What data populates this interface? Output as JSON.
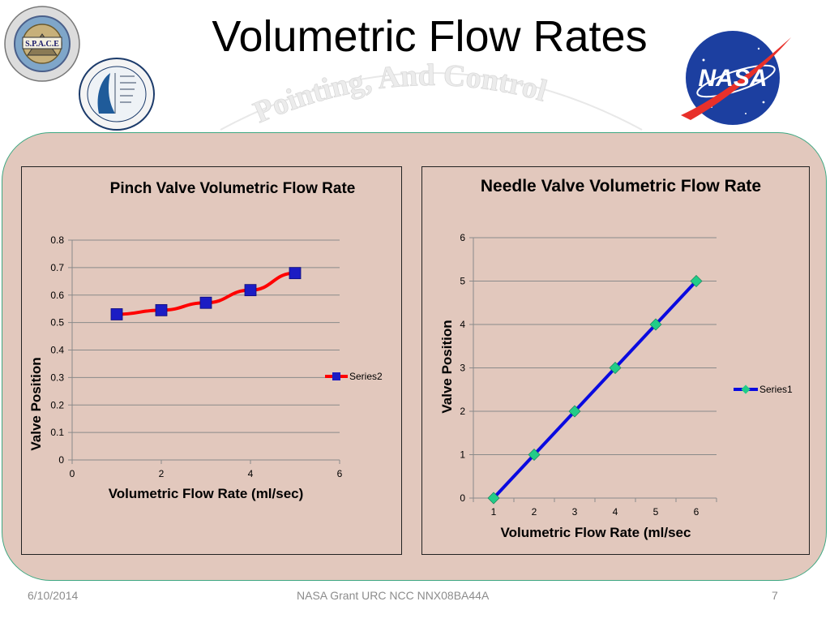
{
  "slide": {
    "title": "Volumetric Flow Rates",
    "footer": {
      "date": "6/10/2014",
      "grant": "NASA Grant URC NCC NNX08BA44A",
      "page": "7"
    },
    "logos": {
      "space_logo_text": "S.P.A.C.E",
      "nasa_logo_text": "NASA",
      "watermark_text": "Pointing, And Control"
    }
  },
  "colors": {
    "panel_bg": "#e2c8bd",
    "panel_border": "#3ea882",
    "pinch_line": "#ff0000",
    "pinch_marker": "#1c1cc4",
    "needle_line": "#0a0ae0",
    "needle_marker": "#22cc88",
    "grid": "#8a8a8a"
  },
  "chart_data": [
    {
      "type": "line",
      "title": "Pinch Valve Volumetric Flow Rate",
      "xlabel": "Volumetric Flow Rate (ml/sec)",
      "ylabel": "Valve Position",
      "xlim": [
        0,
        6
      ],
      "ylim": [
        0,
        0.8
      ],
      "x_ticks": [
        "0",
        "2",
        "4",
        "6"
      ],
      "y_ticks": [
        "0",
        "0.1",
        "0.2",
        "0.3",
        "0.4",
        "0.5",
        "0.6",
        "0.7",
        "0.8"
      ],
      "grid": true,
      "legend": "right",
      "series": [
        {
          "name": "Series2",
          "marker": "square",
          "x": [
            1,
            2,
            3,
            4,
            5
          ],
          "values": [
            0.53,
            0.545,
            0.572,
            0.618,
            0.68
          ]
        }
      ]
    },
    {
      "type": "line",
      "title": "Needle Valve Volumetric Flow Rate",
      "xlabel": "Volumetric Flow Rate (ml/sec",
      "ylabel": "Valve Position",
      "categories": [
        "1",
        "2",
        "3",
        "4",
        "5",
        "6"
      ],
      "ylim": [
        0,
        6
      ],
      "y_ticks": [
        "0",
        "1",
        "2",
        "3",
        "4",
        "5",
        "6"
      ],
      "grid": true,
      "legend": "right",
      "series": [
        {
          "name": "Series1",
          "marker": "diamond",
          "values": [
            0,
            1,
            2,
            3,
            4,
            5
          ]
        }
      ]
    }
  ]
}
